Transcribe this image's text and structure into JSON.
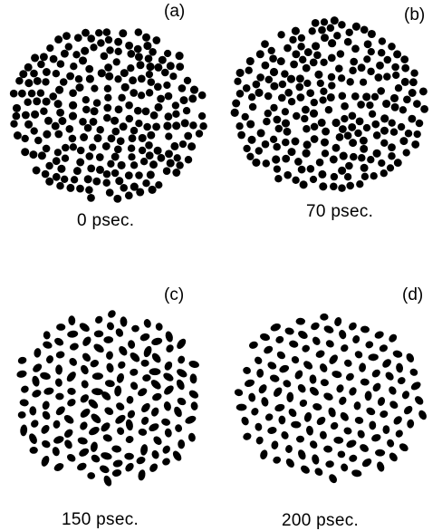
{
  "figure": {
    "panels": [
      {
        "label": "(a)",
        "caption": "0 psec.",
        "order": "random"
      },
      {
        "label": "(b)",
        "caption": "70 psec.",
        "order": "random"
      },
      {
        "label": "(c)",
        "caption": "150 psec.",
        "order": "partial"
      },
      {
        "label": "(d)",
        "caption": "200 psec.",
        "order": "crystalline"
      }
    ],
    "dot_color": "#000000"
  }
}
